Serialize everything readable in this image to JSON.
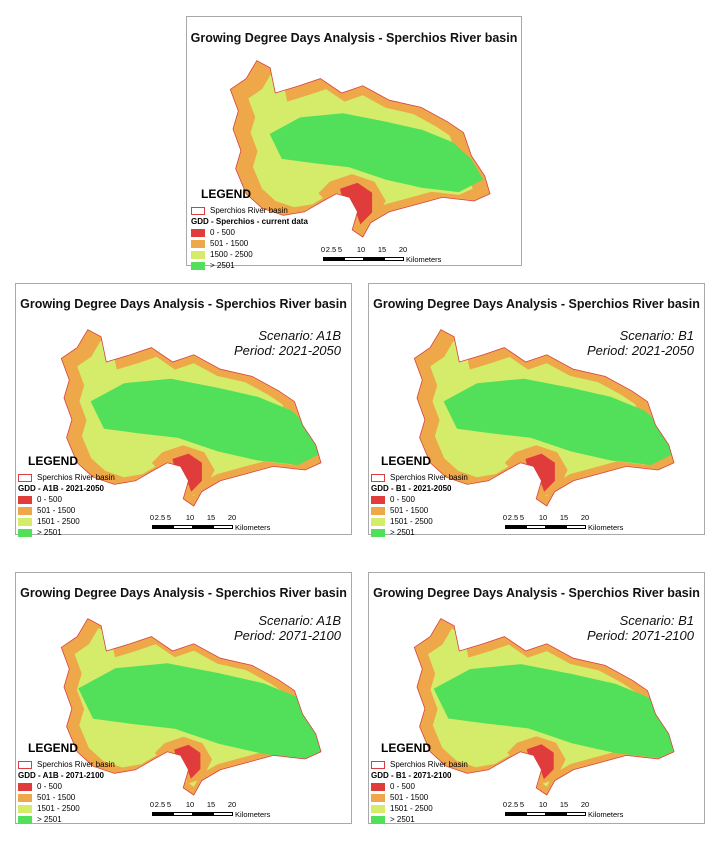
{
  "colors": {
    "class_0_500": "#e03c3c",
    "class_501_1500": "#eea84a",
    "class_1501_2500": "#d4ec6a",
    "class_gt_2501": "#52e05a",
    "basin_outline": "#d84040"
  },
  "panels": [
    {
      "title": "Growing Degree Days Analysis - Sperchios River basin",
      "scenario": "",
      "period": "",
      "legend": {
        "title": "LEGEND",
        "basin_label": "Sperchios River basin",
        "subtitle": "GDD - Sperchios - current data",
        "classes": [
          "0 - 500",
          "501 - 1500",
          "1500 - 2500",
          "> 2501"
        ]
      },
      "scalebar": {
        "ticks": [
          "0",
          "2.5",
          "5",
          "10",
          "15",
          "20"
        ],
        "unit": "Kilometers"
      },
      "gdd_level": 0.55
    },
    {
      "title": "Growing Degree Days Analysis - Sperchios River basin",
      "scenario": "Scenario: A1B",
      "period": "Period: 2021-2050",
      "legend": {
        "title": "LEGEND",
        "basin_label": "Sperchios River basin",
        "subtitle": "GDD - A1B - 2021-2050",
        "classes": [
          "0 - 500",
          "501 - 1500",
          "1501 - 2500",
          "> 2501"
        ]
      },
      "scalebar": {
        "ticks": [
          "0",
          "2.5",
          "5",
          "10",
          "15",
          "20"
        ],
        "unit": "Kilometers"
      },
      "gdd_level": 0.75
    },
    {
      "title": "Growing Degree Days Analysis - Sperchios River basin",
      "scenario": "Scenario: B1",
      "period": "Period: 2021-2050",
      "legend": {
        "title": "LEGEND",
        "basin_label": "Sperchios River basin",
        "subtitle": "GDD - B1 - 2021-2050",
        "classes": [
          "0 - 500",
          "501 - 1500",
          "1501 - 2500",
          "> 2501"
        ]
      },
      "scalebar": {
        "ticks": [
          "0",
          "2.5",
          "5",
          "10",
          "15",
          "20"
        ],
        "unit": "Kilometers"
      },
      "gdd_level": 0.75
    },
    {
      "title": "Growing Degree Days Analysis - Sperchios River basin",
      "scenario": "Scenario: A1B",
      "period": "Period: 2071-2100",
      "legend": {
        "title": "LEGEND",
        "basin_label": "Sperchios River basin",
        "subtitle": "GDD - A1B - 2071-2100",
        "classes": [
          "0 - 500",
          "501 - 1500",
          "1501 - 2500",
          "> 2501"
        ]
      },
      "scalebar": {
        "ticks": [
          "0",
          "2.5",
          "5",
          "10",
          "15",
          "20"
        ],
        "unit": "Kilometers"
      },
      "gdd_level": 1.0
    },
    {
      "title": "Growing Degree Days Analysis - Sperchios River basin",
      "scenario": "Scenario: B1",
      "period": "Period: 2071-2100",
      "legend": {
        "title": "LEGEND",
        "basin_label": "Sperchios River basin",
        "subtitle": "GDD - B1 - 2071-2100",
        "classes": [
          "0 - 500",
          "501 - 1500",
          "1501 - 2500",
          "> 2501"
        ]
      },
      "scalebar": {
        "ticks": [
          "0",
          "2.5",
          "5",
          "10",
          "15",
          "20"
        ],
        "unit": "Kilometers"
      },
      "gdd_level": 0.95
    }
  ]
}
